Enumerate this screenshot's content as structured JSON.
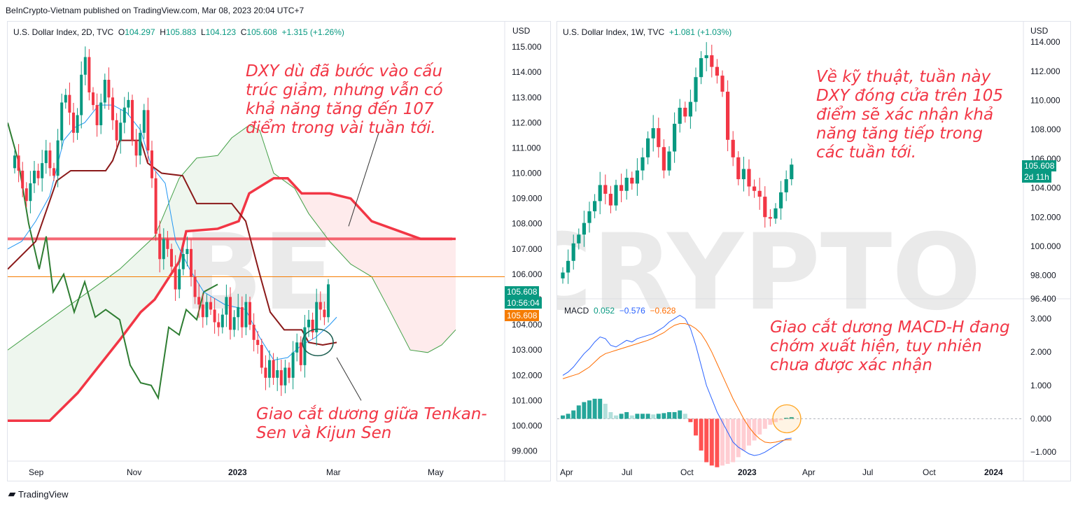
{
  "publisher": "BeInCrypto-Vietnam published on TradingView.com, Mar 08, 2023 20:04 UTC+7",
  "footer": {
    "brand": "TradingView"
  },
  "watermark": "BE[in]CRYPTO",
  "colors": {
    "up": "#089981",
    "down": "#f23645",
    "kijun": "#8b1a1a",
    "tenkan": "#2196f3",
    "chikou": "#43a047",
    "spanA": "#43a047",
    "spanB": "#f23645",
    "orange": "#f57c00",
    "macd": "#2962ff",
    "signal": "#ff6d00"
  },
  "left": {
    "title": "U.S. Dollar Index, 2D, TVC",
    "o_label": "O",
    "o_val": "104.297",
    "h_label": "H",
    "h_val": "105.883",
    "l_label": "L",
    "l_val": "104.123",
    "c_label": "C",
    "c_val": "105.608",
    "change": "+1.315 (+1.26%)",
    "currency": "USD",
    "price_tag": "105.608",
    "countdown": "10:56:04",
    "orange_tag": "105.608",
    "annotation1": "DXY dù đã bước vào cấu trúc giảm, nhưng vẫn có khả năng tăng đến 107 điểm trong vài tuần tới.",
    "annotation2": "Giao cắt dương giữa Tenkan-Sen và Kijun Sen"
  },
  "right": {
    "title": "U.S. Dollar Index, 1W, TVC",
    "change": "+1.081 (+1.03%)",
    "currency": "USD",
    "price_tag": "105.608",
    "countdown": "2d 11h",
    "annotation1": "Về kỹ thuật, tuần này DXY đóng cửa trên 105 điểm sẽ xác nhận khả năng tăng tiếp trong các tuần tới.",
    "macd_label": "MACD",
    "macd_v1": "0.052",
    "macd_v2": "−0.576",
    "macd_v3": "−0.628",
    "annotation2": "Giao cắt dương MACD-H đang chớm xuất hiện, tuy nhiên chưa được xác nhận"
  },
  "chart_data": [
    {
      "type": "candlestick",
      "title": "U.S. Dollar Index, 2D, TVC",
      "ylim": [
        98.6,
        116.0
      ],
      "y_ticks": [
        "115.000",
        "114.000",
        "113.000",
        "112.000",
        "111.000",
        "110.000",
        "109.000",
        "108.000",
        "107.000",
        "106.000",
        "105.000",
        "104.000",
        "103.000",
        "102.000",
        "101.000",
        "100.000",
        "99.000"
      ],
      "x_ticks": [
        "Sep",
        "Nov",
        "2023",
        "Mar",
        "May"
      ],
      "horizontal_levels": [
        {
          "value": 107.4,
          "color": "#f23645"
        },
        {
          "value": 105.9,
          "color": "#f57c00"
        }
      ],
      "close": [
        110.7,
        110.1,
        109.4,
        108.9,
        109.6,
        110.1,
        109.8,
        110.4,
        110.9,
        110.2,
        109.9,
        111.3,
        112.8,
        113.1,
        112.4,
        111.6,
        112.3,
        113.9,
        114.6,
        113.2,
        112.7,
        111.9,
        112.8,
        113.7,
        113.0,
        112.1,
        111.3,
        112.0,
        112.6,
        112.9,
        111.3,
        110.7,
        111.6,
        112.5,
        110.9,
        109.8,
        107.6,
        106.6,
        107.4,
        107.0,
        106.3,
        105.4,
        106.2,
        106.8,
        107.0,
        105.9,
        105.1,
        104.8,
        104.3,
        104.9,
        104.6,
        104.1,
        103.9,
        104.4,
        105.1,
        103.8,
        104.3,
        104.7,
        103.9,
        104.9,
        104.0,
        103.4,
        103.2,
        102.3,
        101.9,
        102.6,
        101.9,
        102.2,
        101.6,
        102.3,
        101.9,
        102.9,
        103.3,
        102.4,
        103.9,
        104.2,
        103.7,
        104.9,
        104.6,
        104.3,
        105.6
      ]
    },
    {
      "type": "candlestick",
      "title": "U.S. Dollar Index, 1W, TVC",
      "ylim": [
        96.4,
        115.4
      ],
      "y_ticks": [
        "114.000",
        "112.000",
        "110.000",
        "108.000",
        "106.000",
        "104.000",
        "102.000",
        "100.000",
        "98.000",
        "96.400"
      ],
      "x_ticks": [
        "Apr",
        "Jul",
        "Oct",
        "2023",
        "Apr",
        "Jul",
        "Oct",
        "2024"
      ],
      "close": [
        98.2,
        99.0,
        100.2,
        100.8,
        101.6,
        102.4,
        103.1,
        104.2,
        103.6,
        102.8,
        104.2,
        103.8,
        104.7,
        104.3,
        105.2,
        106.1,
        107.4,
        108.1,
        106.8,
        105.2,
        106.5,
        108.4,
        109.5,
        108.9,
        109.9,
        111.6,
        112.9,
        113.1,
        112.3,
        111.7,
        110.6,
        107.3,
        106.1,
        104.6,
        105.3,
        104.1,
        103.8,
        103.4,
        102.0,
        101.9,
        102.6,
        103.7,
        104.6,
        105.6
      ]
    },
    {
      "type": "macd",
      "title": "MACD",
      "ylim": [
        -1.1,
        3.3
      ],
      "y_ticks": [
        "3.000",
        "2.000",
        "1.000",
        "0.000",
        "−1.000"
      ],
      "macd": [
        1.3,
        1.4,
        1.55,
        1.75,
        1.95,
        2.1,
        2.3,
        2.45,
        2.4,
        2.2,
        2.15,
        2.25,
        2.35,
        2.3,
        2.4,
        2.45,
        2.5,
        2.55,
        2.65,
        2.75,
        2.9,
        3.0,
        3.1,
        3.0,
        2.7,
        2.2,
        1.6,
        1.0,
        0.6,
        0.2,
        -0.1,
        -0.4,
        -0.7,
        -0.85,
        -0.95,
        -1.05,
        -1.1,
        -1.07,
        -1.0,
        -0.9,
        -0.8,
        -0.7,
        -0.6,
        -0.58
      ],
      "signal": [
        1.2,
        1.25,
        1.3,
        1.35,
        1.45,
        1.55,
        1.7,
        1.85,
        1.95,
        2.0,
        2.05,
        2.1,
        2.15,
        2.2,
        2.25,
        2.3,
        2.35,
        2.42,
        2.5,
        2.58,
        2.7,
        2.8,
        2.85,
        2.85,
        2.8,
        2.7,
        2.55,
        2.3,
        2.0,
        1.65,
        1.3,
        0.95,
        0.6,
        0.3,
        0.0,
        -0.25,
        -0.45,
        -0.6,
        -0.7,
        -0.72,
        -0.7,
        -0.66,
        -0.63,
        -0.63
      ],
      "hist": [
        0.1,
        0.15,
        0.25,
        0.4,
        0.5,
        0.55,
        0.6,
        0.6,
        0.45,
        0.2,
        0.1,
        0.15,
        0.2,
        0.1,
        0.15,
        0.15,
        0.15,
        0.13,
        0.15,
        0.17,
        0.2,
        0.2,
        0.25,
        0.15,
        -0.1,
        -0.5,
        -0.95,
        -1.3,
        -1.4,
        -1.45,
        -1.4,
        -1.35,
        -1.3,
        -1.15,
        -0.95,
        -0.8,
        -0.65,
        -0.47,
        -0.3,
        -0.18,
        -0.1,
        -0.04,
        0.03,
        0.05
      ]
    }
  ]
}
